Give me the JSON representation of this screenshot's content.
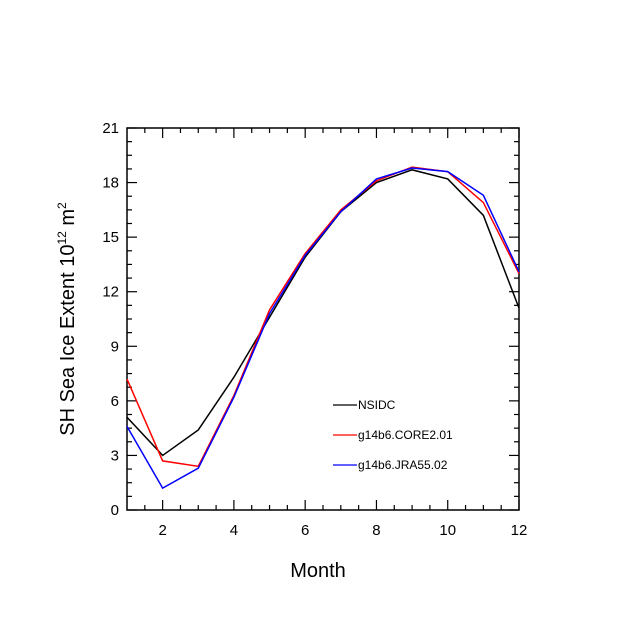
{
  "chart_data": {
    "type": "line",
    "title": "",
    "xlabel": "Month",
    "ylabel": {
      "text": "SH Sea Ice Extent 10",
      "sup1": "12",
      "mid": " m",
      "sup2": "2"
    },
    "xlim": [
      1,
      12
    ],
    "ylim": [
      0,
      21
    ],
    "xticks": [
      2,
      4,
      6,
      8,
      10,
      12
    ],
    "yticks": [
      0,
      3,
      6,
      9,
      12,
      15,
      18,
      21
    ],
    "grid": false,
    "legend_position": "lower-right",
    "x": [
      1,
      2,
      3,
      4,
      5,
      6,
      7,
      8,
      9,
      10,
      11,
      12
    ],
    "series": [
      {
        "name": "NSIDC",
        "color": "#000000",
        "values": [
          5.1,
          3.0,
          4.4,
          7.3,
          10.6,
          13.9,
          16.4,
          18.0,
          18.7,
          18.2,
          16.2,
          11.1
        ]
      },
      {
        "name": "g14b6.CORE2.01",
        "color": "#ff0000",
        "values": [
          7.2,
          2.7,
          2.4,
          6.3,
          11.0,
          14.1,
          16.5,
          18.1,
          18.85,
          18.6,
          16.9,
          13.0
        ]
      },
      {
        "name": "g14b6.JRA55.02",
        "color": "#0000ff",
        "values": [
          4.6,
          1.2,
          2.3,
          6.2,
          10.8,
          14.0,
          16.4,
          18.2,
          18.8,
          18.6,
          17.3,
          13.1
        ]
      }
    ]
  }
}
